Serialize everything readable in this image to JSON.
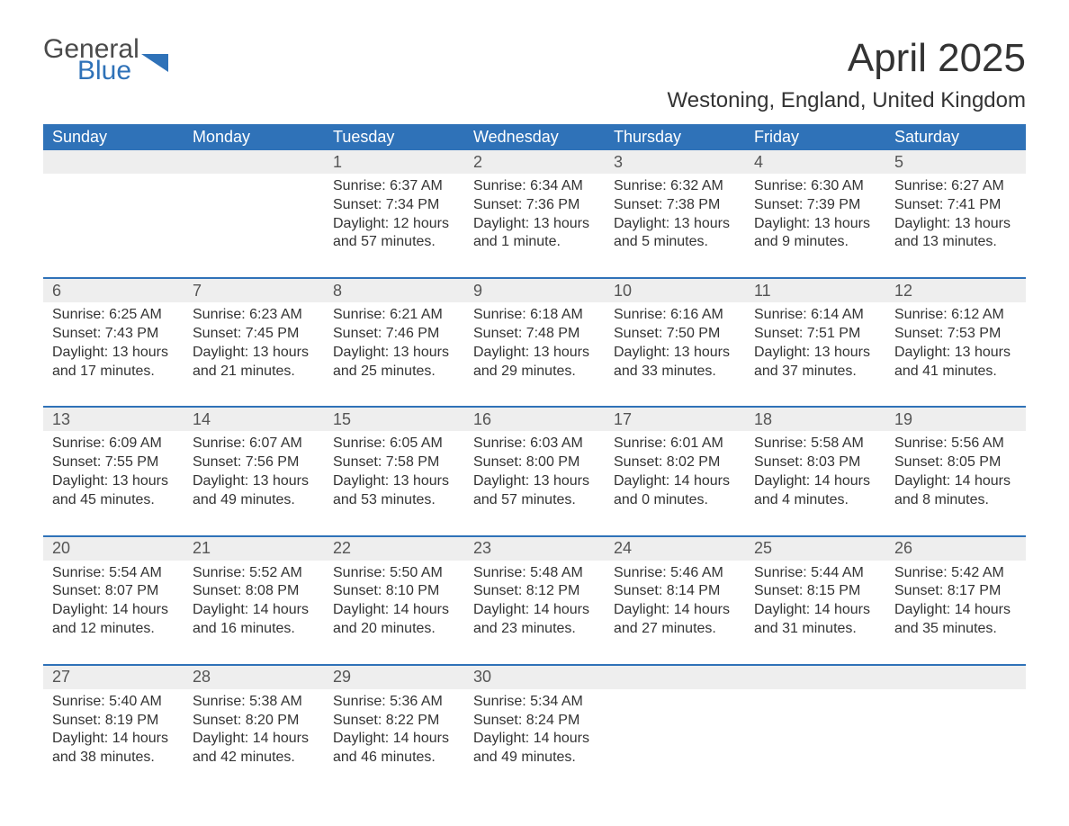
{
  "logo": {
    "line1": "General",
    "line2": "Blue",
    "shape_color": "#2f72b8",
    "text_gray": "#4a4a4a"
  },
  "title": "April 2025",
  "location": "Westoning, England, United Kingdom",
  "colors": {
    "header_bg": "#2f72b8",
    "header_text": "#ffffff",
    "daynum_bg": "#eeeeee",
    "body_text": "#333333",
    "week_divider": "#2f72b8",
    "page_bg": "#ffffff"
  },
  "layout": {
    "columns": 7,
    "body_rows": 5,
    "column_width_pct": 14.28
  },
  "font": {
    "family": "Segoe UI / Arial",
    "title_size_pt": 33,
    "location_size_pt": 18,
    "dow_size_pt": 14,
    "cell_size_pt": 12
  },
  "days_of_week": [
    "Sunday",
    "Monday",
    "Tuesday",
    "Wednesday",
    "Thursday",
    "Friday",
    "Saturday"
  ],
  "weeks": [
    [
      null,
      null,
      {
        "n": "1",
        "sr": "Sunrise: 6:37 AM",
        "ss": "Sunset: 7:34 PM",
        "d1": "Daylight: 12 hours",
        "d2": "and 57 minutes."
      },
      {
        "n": "2",
        "sr": "Sunrise: 6:34 AM",
        "ss": "Sunset: 7:36 PM",
        "d1": "Daylight: 13 hours",
        "d2": "and 1 minute."
      },
      {
        "n": "3",
        "sr": "Sunrise: 6:32 AM",
        "ss": "Sunset: 7:38 PM",
        "d1": "Daylight: 13 hours",
        "d2": "and 5 minutes."
      },
      {
        "n": "4",
        "sr": "Sunrise: 6:30 AM",
        "ss": "Sunset: 7:39 PM",
        "d1": "Daylight: 13 hours",
        "d2": "and 9 minutes."
      },
      {
        "n": "5",
        "sr": "Sunrise: 6:27 AM",
        "ss": "Sunset: 7:41 PM",
        "d1": "Daylight: 13 hours",
        "d2": "and 13 minutes."
      }
    ],
    [
      {
        "n": "6",
        "sr": "Sunrise: 6:25 AM",
        "ss": "Sunset: 7:43 PM",
        "d1": "Daylight: 13 hours",
        "d2": "and 17 minutes."
      },
      {
        "n": "7",
        "sr": "Sunrise: 6:23 AM",
        "ss": "Sunset: 7:45 PM",
        "d1": "Daylight: 13 hours",
        "d2": "and 21 minutes."
      },
      {
        "n": "8",
        "sr": "Sunrise: 6:21 AM",
        "ss": "Sunset: 7:46 PM",
        "d1": "Daylight: 13 hours",
        "d2": "and 25 minutes."
      },
      {
        "n": "9",
        "sr": "Sunrise: 6:18 AM",
        "ss": "Sunset: 7:48 PM",
        "d1": "Daylight: 13 hours",
        "d2": "and 29 minutes."
      },
      {
        "n": "10",
        "sr": "Sunrise: 6:16 AM",
        "ss": "Sunset: 7:50 PM",
        "d1": "Daylight: 13 hours",
        "d2": "and 33 minutes."
      },
      {
        "n": "11",
        "sr": "Sunrise: 6:14 AM",
        "ss": "Sunset: 7:51 PM",
        "d1": "Daylight: 13 hours",
        "d2": "and 37 minutes."
      },
      {
        "n": "12",
        "sr": "Sunrise: 6:12 AM",
        "ss": "Sunset: 7:53 PM",
        "d1": "Daylight: 13 hours",
        "d2": "and 41 minutes."
      }
    ],
    [
      {
        "n": "13",
        "sr": "Sunrise: 6:09 AM",
        "ss": "Sunset: 7:55 PM",
        "d1": "Daylight: 13 hours",
        "d2": "and 45 minutes."
      },
      {
        "n": "14",
        "sr": "Sunrise: 6:07 AM",
        "ss": "Sunset: 7:56 PM",
        "d1": "Daylight: 13 hours",
        "d2": "and 49 minutes."
      },
      {
        "n": "15",
        "sr": "Sunrise: 6:05 AM",
        "ss": "Sunset: 7:58 PM",
        "d1": "Daylight: 13 hours",
        "d2": "and 53 minutes."
      },
      {
        "n": "16",
        "sr": "Sunrise: 6:03 AM",
        "ss": "Sunset: 8:00 PM",
        "d1": "Daylight: 13 hours",
        "d2": "and 57 minutes."
      },
      {
        "n": "17",
        "sr": "Sunrise: 6:01 AM",
        "ss": "Sunset: 8:02 PM",
        "d1": "Daylight: 14 hours",
        "d2": "and 0 minutes."
      },
      {
        "n": "18",
        "sr": "Sunrise: 5:58 AM",
        "ss": "Sunset: 8:03 PM",
        "d1": "Daylight: 14 hours",
        "d2": "and 4 minutes."
      },
      {
        "n": "19",
        "sr": "Sunrise: 5:56 AM",
        "ss": "Sunset: 8:05 PM",
        "d1": "Daylight: 14 hours",
        "d2": "and 8 minutes."
      }
    ],
    [
      {
        "n": "20",
        "sr": "Sunrise: 5:54 AM",
        "ss": "Sunset: 8:07 PM",
        "d1": "Daylight: 14 hours",
        "d2": "and 12 minutes."
      },
      {
        "n": "21",
        "sr": "Sunrise: 5:52 AM",
        "ss": "Sunset: 8:08 PM",
        "d1": "Daylight: 14 hours",
        "d2": "and 16 minutes."
      },
      {
        "n": "22",
        "sr": "Sunrise: 5:50 AM",
        "ss": "Sunset: 8:10 PM",
        "d1": "Daylight: 14 hours",
        "d2": "and 20 minutes."
      },
      {
        "n": "23",
        "sr": "Sunrise: 5:48 AM",
        "ss": "Sunset: 8:12 PM",
        "d1": "Daylight: 14 hours",
        "d2": "and 23 minutes."
      },
      {
        "n": "24",
        "sr": "Sunrise: 5:46 AM",
        "ss": "Sunset: 8:14 PM",
        "d1": "Daylight: 14 hours",
        "d2": "and 27 minutes."
      },
      {
        "n": "25",
        "sr": "Sunrise: 5:44 AM",
        "ss": "Sunset: 8:15 PM",
        "d1": "Daylight: 14 hours",
        "d2": "and 31 minutes."
      },
      {
        "n": "26",
        "sr": "Sunrise: 5:42 AM",
        "ss": "Sunset: 8:17 PM",
        "d1": "Daylight: 14 hours",
        "d2": "and 35 minutes."
      }
    ],
    [
      {
        "n": "27",
        "sr": "Sunrise: 5:40 AM",
        "ss": "Sunset: 8:19 PM",
        "d1": "Daylight: 14 hours",
        "d2": "and 38 minutes."
      },
      {
        "n": "28",
        "sr": "Sunrise: 5:38 AM",
        "ss": "Sunset: 8:20 PM",
        "d1": "Daylight: 14 hours",
        "d2": "and 42 minutes."
      },
      {
        "n": "29",
        "sr": "Sunrise: 5:36 AM",
        "ss": "Sunset: 8:22 PM",
        "d1": "Daylight: 14 hours",
        "d2": "and 46 minutes."
      },
      {
        "n": "30",
        "sr": "Sunrise: 5:34 AM",
        "ss": "Sunset: 8:24 PM",
        "d1": "Daylight: 14 hours",
        "d2": "and 49 minutes."
      },
      null,
      null,
      null
    ]
  ]
}
